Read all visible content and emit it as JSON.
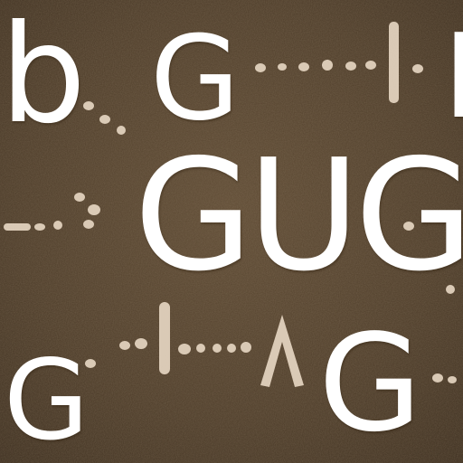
{
  "scene": {
    "colors": {
      "background": "#4a3a28",
      "letters": "#ffffff",
      "pebbles": "#e8d8c4"
    },
    "letters": {
      "b": "b",
      "g_top": "G",
      "i_right": "I",
      "gug": "GUG",
      "g_left_bottom": "G",
      "g_right_bottom": "G"
    }
  }
}
